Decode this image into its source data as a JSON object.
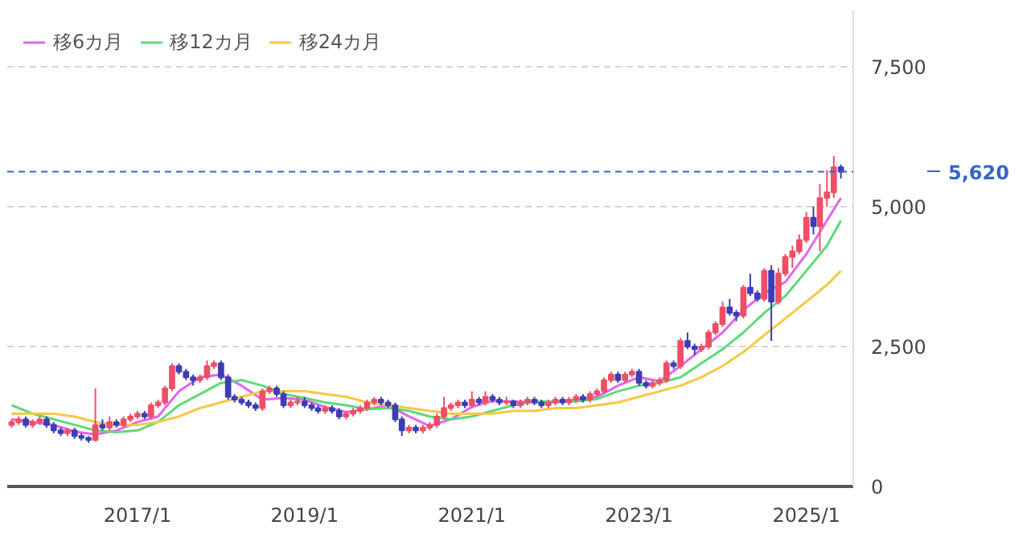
{
  "chart_data": {
    "type": "candlestick",
    "x": [
      "2015-07",
      "2015-08",
      "2015-09",
      "2015-10",
      "2015-11",
      "2015-12",
      "2016-01",
      "2016-02",
      "2016-03",
      "2016-04",
      "2016-05",
      "2016-06",
      "2016-07",
      "2016-08",
      "2016-09",
      "2016-10",
      "2016-11",
      "2016-12",
      "2017-01",
      "2017-02",
      "2017-03",
      "2017-04",
      "2017-05",
      "2017-06",
      "2017-07",
      "2017-08",
      "2017-09",
      "2017-10",
      "2017-11",
      "2017-12",
      "2018-01",
      "2018-02",
      "2018-03",
      "2018-04",
      "2018-05",
      "2018-06",
      "2018-07",
      "2018-08",
      "2018-09",
      "2018-10",
      "2018-11",
      "2018-12",
      "2019-01",
      "2019-02",
      "2019-03",
      "2019-04",
      "2019-05",
      "2019-06",
      "2019-07",
      "2019-08",
      "2019-09",
      "2019-10",
      "2019-11",
      "2019-12",
      "2020-01",
      "2020-02",
      "2020-03",
      "2020-04",
      "2020-05",
      "2020-06",
      "2020-07",
      "2020-08",
      "2020-09",
      "2020-10",
      "2020-11",
      "2020-12",
      "2021-01",
      "2021-02",
      "2021-03",
      "2021-04",
      "2021-05",
      "2021-06",
      "2021-07",
      "2021-08",
      "2021-09",
      "2021-10",
      "2021-11",
      "2021-12",
      "2022-01",
      "2022-02",
      "2022-03",
      "2022-04",
      "2022-05",
      "2022-06",
      "2022-07",
      "2022-08",
      "2022-09",
      "2022-10",
      "2022-11",
      "2022-12",
      "2023-01",
      "2023-02",
      "2023-03",
      "2023-04",
      "2023-05",
      "2023-06",
      "2023-07",
      "2023-08",
      "2023-09",
      "2023-10",
      "2023-11",
      "2023-12",
      "2024-01",
      "2024-02",
      "2024-03",
      "2024-04",
      "2024-05",
      "2024-06",
      "2024-07",
      "2024-08",
      "2024-09",
      "2024-10",
      "2024-11",
      "2024-12",
      "2025-01",
      "2025-02",
      "2025-03",
      "2025-04",
      "2025-05",
      "2025-06"
    ],
    "ohlc": [
      [
        1100,
        1200,
        1050,
        1150
      ],
      [
        1150,
        1250,
        1100,
        1200
      ],
      [
        1200,
        1250,
        1050,
        1100
      ],
      [
        1100,
        1200,
        1050,
        1150
      ],
      [
        1150,
        1250,
        1100,
        1200
      ],
      [
        1200,
        1250,
        1050,
        1100
      ],
      [
        1100,
        1150,
        950,
        1000
      ],
      [
        1000,
        1050,
        900,
        950
      ],
      [
        950,
        1050,
        900,
        1000
      ],
      [
        1000,
        1050,
        850,
        900
      ],
      [
        900,
        950,
        820,
        870
      ],
      [
        870,
        900,
        780,
        830
      ],
      [
        830,
        1750,
        800,
        1100
      ],
      [
        1100,
        1200,
        1000,
        1050
      ],
      [
        1050,
        1250,
        1000,
        1150
      ],
      [
        1150,
        1200,
        1050,
        1100
      ],
      [
        1100,
        1250,
        1050,
        1200
      ],
      [
        1200,
        1300,
        1150,
        1250
      ],
      [
        1250,
        1350,
        1200,
        1300
      ],
      [
        1300,
        1350,
        1200,
        1250
      ],
      [
        1250,
        1500,
        1200,
        1450
      ],
      [
        1450,
        1550,
        1400,
        1500
      ],
      [
        1500,
        1800,
        1450,
        1750
      ],
      [
        1750,
        2200,
        1700,
        2150
      ],
      [
        2150,
        2200,
        2000,
        2050
      ],
      [
        2050,
        2100,
        1900,
        1950
      ],
      [
        1950,
        2000,
        1800,
        1900
      ],
      [
        1900,
        2000,
        1850,
        1950
      ],
      [
        1950,
        2250,
        1900,
        2150
      ],
      [
        2150,
        2250,
        2100,
        2200
      ],
      [
        2200,
        2250,
        1900,
        1950
      ],
      [
        1950,
        2000,
        1550,
        1600
      ],
      [
        1600,
        1650,
        1500,
        1550
      ],
      [
        1550,
        1600,
        1450,
        1500
      ],
      [
        1500,
        1550,
        1400,
        1450
      ],
      [
        1450,
        1500,
        1350,
        1400
      ],
      [
        1400,
        1750,
        1350,
        1700
      ],
      [
        1700,
        1800,
        1650,
        1750
      ],
      [
        1750,
        1800,
        1600,
        1650
      ],
      [
        1650,
        1700,
        1400,
        1450
      ],
      [
        1450,
        1550,
        1400,
        1500
      ],
      [
        1500,
        1600,
        1450,
        1520
      ],
      [
        1520,
        1600,
        1400,
        1450
      ],
      [
        1450,
        1500,
        1350,
        1400
      ],
      [
        1400,
        1450,
        1300,
        1350
      ],
      [
        1350,
        1450,
        1300,
        1400
      ],
      [
        1400,
        1450,
        1300,
        1350
      ],
      [
        1350,
        1400,
        1200,
        1250
      ],
      [
        1250,
        1350,
        1200,
        1300
      ],
      [
        1300,
        1400,
        1250,
        1350
      ],
      [
        1350,
        1450,
        1300,
        1400
      ],
      [
        1400,
        1550,
        1350,
        1500
      ],
      [
        1500,
        1600,
        1450,
        1550
      ],
      [
        1550,
        1600,
        1450,
        1500
      ],
      [
        1500,
        1550,
        1400,
        1450
      ],
      [
        1450,
        1500,
        1150,
        1200
      ],
      [
        1200,
        1250,
        900,
        1000
      ],
      [
        1000,
        1100,
        950,
        1050
      ],
      [
        1050,
        1100,
        950,
        1000
      ],
      [
        1000,
        1100,
        950,
        1050
      ],
      [
        1050,
        1150,
        1000,
        1100
      ],
      [
        1100,
        1300,
        1050,
        1250
      ],
      [
        1250,
        1600,
        1200,
        1400
      ],
      [
        1400,
        1500,
        1350,
        1450
      ],
      [
        1450,
        1550,
        1400,
        1500
      ],
      [
        1500,
        1550,
        1400,
        1450
      ],
      [
        1450,
        1700,
        1400,
        1550
      ],
      [
        1550,
        1600,
        1450,
        1500
      ],
      [
        1500,
        1700,
        1450,
        1600
      ],
      [
        1600,
        1650,
        1500,
        1550
      ],
      [
        1550,
        1600,
        1450,
        1500
      ],
      [
        1500,
        1600,
        1450,
        1520
      ],
      [
        1520,
        1550,
        1400,
        1450
      ],
      [
        1450,
        1550,
        1400,
        1500
      ],
      [
        1500,
        1600,
        1450,
        1550
      ],
      [
        1550,
        1600,
        1450,
        1500
      ],
      [
        1500,
        1550,
        1400,
        1450
      ],
      [
        1450,
        1550,
        1400,
        1500
      ],
      [
        1500,
        1600,
        1450,
        1550
      ],
      [
        1550,
        1600,
        1450,
        1500
      ],
      [
        1500,
        1600,
        1450,
        1550
      ],
      [
        1550,
        1650,
        1500,
        1600
      ],
      [
        1600,
        1650,
        1500,
        1550
      ],
      [
        1550,
        1700,
        1500,
        1650
      ],
      [
        1650,
        1750,
        1600,
        1700
      ],
      [
        1700,
        1950,
        1650,
        1900
      ],
      [
        1900,
        2050,
        1850,
        2000
      ],
      [
        2000,
        2050,
        1850,
        1900
      ],
      [
        1900,
        2050,
        1850,
        2000
      ],
      [
        2000,
        2100,
        1950,
        2050
      ],
      [
        2050,
        2100,
        1800,
        1850
      ],
      [
        1850,
        1900,
        1750,
        1800
      ],
      [
        1800,
        1900,
        1750,
        1850
      ],
      [
        1850,
        1950,
        1800,
        1900
      ],
      [
        1900,
        2250,
        1850,
        2200
      ],
      [
        2200,
        2250,
        2100,
        2150
      ],
      [
        2150,
        2650,
        2100,
        2600
      ],
      [
        2600,
        2750,
        2450,
        2500
      ],
      [
        2500,
        2550,
        2350,
        2450
      ],
      [
        2450,
        2550,
        2400,
        2500
      ],
      [
        2500,
        2800,
        2450,
        2750
      ],
      [
        2750,
        2950,
        2700,
        2900
      ],
      [
        2900,
        3300,
        2850,
        3200
      ],
      [
        3200,
        3350,
        3050,
        3100
      ],
      [
        3100,
        3150,
        2950,
        3050
      ],
      [
        3050,
        3600,
        3000,
        3550
      ],
      [
        3550,
        3800,
        3400,
        3450
      ],
      [
        3450,
        3500,
        3300,
        3350
      ],
      [
        3350,
        3900,
        3300,
        3850
      ],
      [
        3850,
        3950,
        2600,
        3300
      ],
      [
        3300,
        3900,
        3250,
        3800
      ],
      [
        3800,
        4150,
        3750,
        4100
      ],
      [
        4100,
        4300,
        3900,
        4200
      ],
      [
        4200,
        4500,
        4150,
        4400
      ],
      [
        4400,
        4900,
        4350,
        4800
      ],
      [
        4800,
        5000,
        4500,
        4650
      ],
      [
        4650,
        5400,
        4200,
        5150
      ],
      [
        5150,
        5650,
        5000,
        5250
      ],
      [
        5250,
        5900,
        5150,
        5700
      ],
      [
        5700,
        5750,
        5500,
        5620
      ]
    ],
    "colors": [
      "#ef4f66",
      "#ef4f66",
      "#3d3db5",
      "#ef4f66",
      "#ef4f66",
      "#3d3db5",
      "#3d3db5",
      "#3d3db5",
      "#ef4f66",
      "#3d3db5",
      "#3d3db5",
      "#3d3db5",
      "#ef4f66",
      "#3d3db5",
      "#ef4f66",
      "#3d3db5",
      "#ef4f66",
      "#ef4f66",
      "#ef4f66",
      "#3d3db5",
      "#ef4f66",
      "#ef4f66",
      "#ef4f66",
      "#ef4f66",
      "#3d3db5",
      "#3d3db5",
      "#3d3db5",
      "#ef4f66",
      "#ef4f66",
      "#ef4f66",
      "#3d3db5",
      "#3d3db5",
      "#3d3db5",
      "#3d3db5",
      "#3d3db5",
      "#3d3db5",
      "#ef4f66",
      "#ef4f66",
      "#3d3db5",
      "#3d3db5",
      "#ef4f66",
      "#ef4f66",
      "#3d3db5",
      "#3d3db5",
      "#3d3db5",
      "#ef4f66",
      "#3d3db5",
      "#3d3db5",
      "#ef4f66",
      "#ef4f66",
      "#ef4f66",
      "#ef4f66",
      "#ef4f66",
      "#3d3db5",
      "#3d3db5",
      "#3d3db5",
      "#3d3db5",
      "#ef4f66",
      "#3d3db5",
      "#ef4f66",
      "#ef4f66",
      "#ef4f66",
      "#ef4f66",
      "#ef4f66",
      "#ef4f66",
      "#3d3db5",
      "#ef4f66",
      "#3d3db5",
      "#ef4f66",
      "#3d3db5",
      "#3d3db5",
      "#ef4f66",
      "#3d3db5",
      "#ef4f66",
      "#ef4f66",
      "#3d3db5",
      "#3d3db5",
      "#ef4f66",
      "#ef4f66",
      "#3d3db5",
      "#ef4f66",
      "#ef4f66",
      "#3d3db5",
      "#ef4f66",
      "#ef4f66",
      "#ef4f66",
      "#ef4f66",
      "#3d3db5",
      "#ef4f66",
      "#ef4f66",
      "#3d3db5",
      "#3d3db5",
      "#ef4f66",
      "#ef4f66",
      "#ef4f66",
      "#3d3db5",
      "#ef4f66",
      "#3d3db5",
      "#3d3db5",
      "#ef4f66",
      "#ef4f66",
      "#ef4f66",
      "#ef4f66",
      "#3d3db5",
      "#3d3db5",
      "#ef4f66",
      "#3d3db5",
      "#3d3db5",
      "#ef4f66",
      "#3d3db5",
      "#ef4f66",
      "#ef4f66",
      "#ef4f66",
      "#ef4f66",
      "#ef4f66",
      "#3d3db5",
      "#ef4f66",
      "#ef4f66",
      "#ef4f66",
      "#3d3db5"
    ],
    "series": [
      {
        "name": "移6カ月",
        "type": "line",
        "color": "#e066f0",
        "x": [
          "2015-07",
          "2015-10",
          "2016-01",
          "2016-04",
          "2016-07",
          "2016-10",
          "2017-01",
          "2017-04",
          "2017-07",
          "2017-10",
          "2018-01",
          "2018-04",
          "2018-07",
          "2018-10",
          "2019-01",
          "2019-04",
          "2019-07",
          "2019-10",
          "2020-01",
          "2020-04",
          "2020-07",
          "2020-10",
          "2021-01",
          "2021-04",
          "2021-07",
          "2021-10",
          "2022-01",
          "2022-04",
          "2022-07",
          "2022-10",
          "2023-01",
          "2023-04",
          "2023-07",
          "2023-10",
          "2024-01",
          "2024-04",
          "2024-07",
          "2024-10",
          "2025-01",
          "2025-04",
          "2025-06"
        ],
        "values": [
          1200,
          1150,
          1100,
          980,
          930,
          1000,
          1150,
          1250,
          1700,
          1950,
          2000,
          1800,
          1550,
          1580,
          1550,
          1420,
          1330,
          1380,
          1450,
          1250,
          1080,
          1200,
          1420,
          1530,
          1520,
          1500,
          1500,
          1550,
          1600,
          1800,
          1950,
          1880,
          2150,
          2450,
          2750,
          3150,
          3450,
          3650,
          4150,
          4750,
          5150
        ]
      },
      {
        "name": "移12カ月",
        "type": "line",
        "color": "#5fd97a",
        "x": [
          "2015-07",
          "2015-10",
          "2016-01",
          "2016-04",
          "2016-07",
          "2016-10",
          "2017-01",
          "2017-04",
          "2017-07",
          "2017-10",
          "2018-01",
          "2018-04",
          "2018-07",
          "2018-10",
          "2019-01",
          "2019-04",
          "2019-07",
          "2019-10",
          "2020-01",
          "2020-04",
          "2020-07",
          "2020-10",
          "2021-01",
          "2021-04",
          "2021-07",
          "2021-10",
          "2022-01",
          "2022-04",
          "2022-07",
          "2022-10",
          "2023-01",
          "2023-04",
          "2023-07",
          "2023-10",
          "2024-01",
          "2024-04",
          "2024-07",
          "2024-10",
          "2025-01",
          "2025-04",
          "2025-06"
        ],
        "values": [
          1450,
          1300,
          1200,
          1100,
          1000,
          970,
          1000,
          1150,
          1450,
          1650,
          1850,
          1900,
          1800,
          1650,
          1580,
          1500,
          1450,
          1380,
          1400,
          1350,
          1250,
          1200,
          1250,
          1350,
          1450,
          1520,
          1520,
          1520,
          1560,
          1700,
          1800,
          1850,
          1950,
          2200,
          2450,
          2750,
          3100,
          3400,
          3850,
          4300,
          4750
        ]
      },
      {
        "name": "移24カ月",
        "type": "line",
        "color": "#f7c844",
        "x": [
          "2015-07",
          "2015-10",
          "2016-01",
          "2016-04",
          "2016-07",
          "2016-10",
          "2017-01",
          "2017-04",
          "2017-07",
          "2017-10",
          "2018-01",
          "2018-04",
          "2018-07",
          "2018-10",
          "2019-01",
          "2019-04",
          "2019-07",
          "2019-10",
          "2020-01",
          "2020-04",
          "2020-07",
          "2020-10",
          "2021-01",
          "2021-04",
          "2021-07",
          "2021-10",
          "2022-01",
          "2022-04",
          "2022-07",
          "2022-10",
          "2023-01",
          "2023-04",
          "2023-07",
          "2023-10",
          "2024-01",
          "2024-04",
          "2024-07",
          "2024-10",
          "2025-01",
          "2025-04",
          "2025-06"
        ],
        "values": [
          1300,
          1300,
          1300,
          1250,
          1150,
          1100,
          1100,
          1150,
          1250,
          1400,
          1500,
          1600,
          1700,
          1700,
          1700,
          1650,
          1600,
          1500,
          1450,
          1400,
          1350,
          1300,
          1300,
          1300,
          1350,
          1350,
          1400,
          1400,
          1450,
          1500,
          1600,
          1700,
          1800,
          1950,
          2150,
          2400,
          2700,
          3000,
          3300,
          3600,
          3850
        ]
      }
    ],
    "xlim": [
      "2015-06-12",
      "2025-07-25"
    ],
    "xticks": [
      {
        "value": "2017-01",
        "label": "2017/1"
      },
      {
        "value": "2019-01",
        "label": "2019/1"
      },
      {
        "value": "2021-01",
        "label": "2021/1"
      },
      {
        "value": "2023-01",
        "label": "2023/1"
      },
      {
        "value": "2025-01",
        "label": "2025/1"
      }
    ],
    "ylim": [
      0,
      8500
    ],
    "yticks": [
      0,
      {
        "value": 2500,
        "label": "2,500"
      },
      {
        "value": 5000,
        "label": "5,000"
      },
      {
        "value": 7500,
        "label": "7,500"
      }
    ],
    "ref_lines": [
      {
        "axis": "y",
        "value": 5620,
        "label": "5,620",
        "color": "#3366cc",
        "line_style": "dashed"
      }
    ],
    "grid": "y",
    "legend": "top left"
  }
}
